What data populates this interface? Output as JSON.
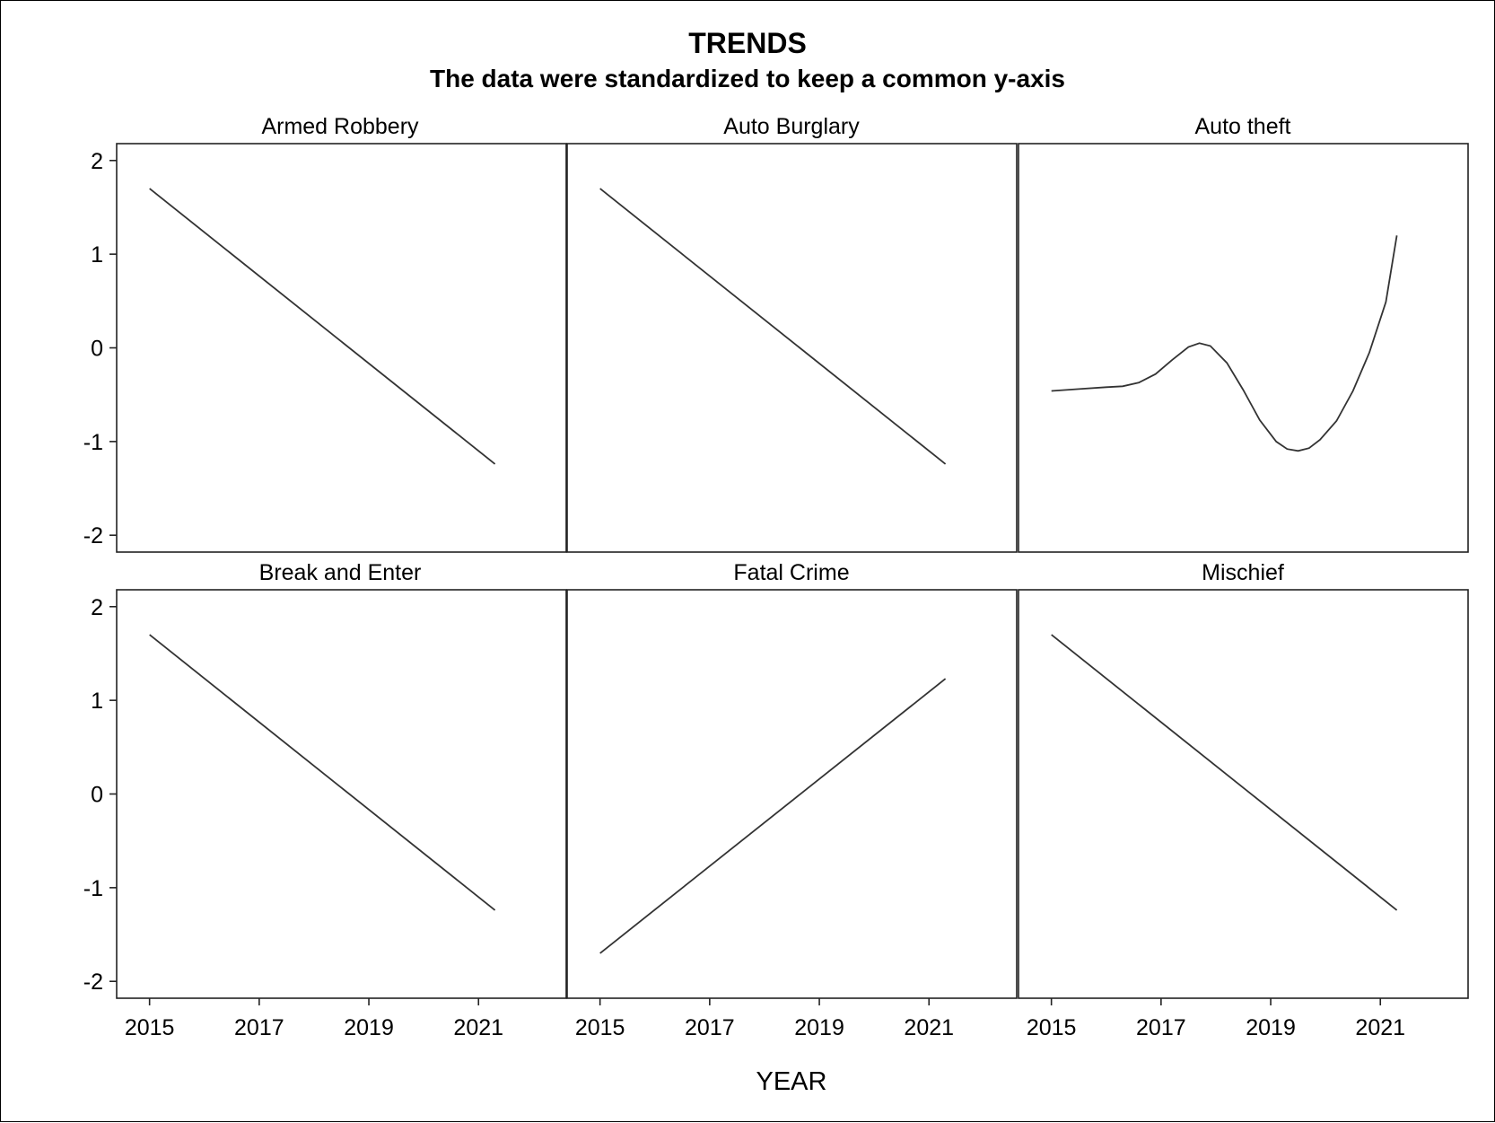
{
  "chart_data": {
    "type": "line",
    "title": "TRENDS",
    "subtitle": "The data were standardized to keep a common y-axis",
    "xlabel": "YEAR",
    "ylabel": "",
    "xlim": [
      2014.4,
      2022.6
    ],
    "ylim": [
      -2.18,
      2.18
    ],
    "x_ticks": [
      2015,
      2017,
      2019,
      2021
    ],
    "y_ticks": [
      -2,
      -1,
      0,
      1,
      2
    ],
    "grid": false,
    "layout": "panel grid, 3 columns x 2 rows, shared axes",
    "line_color": "#333333",
    "panels": [
      {
        "name": "Armed Robbery",
        "x": [
          2015,
          2021.3
        ],
        "y": [
          1.7,
          -1.24
        ]
      },
      {
        "name": "Auto Burglary",
        "x": [
          2015,
          2021.3
        ],
        "y": [
          1.7,
          -1.24
        ]
      },
      {
        "name": "Auto theft",
        "x": [
          2015,
          2015.5,
          2016,
          2016.3,
          2016.6,
          2016.9,
          2017.2,
          2017.5,
          2017.7,
          2017.9,
          2018.2,
          2018.5,
          2018.8,
          2019.1,
          2019.3,
          2019.5,
          2019.7,
          2019.9,
          2020.2,
          2020.5,
          2020.8,
          2021.1,
          2021.3
        ],
        "y": [
          -0.46,
          -0.44,
          -0.42,
          -0.41,
          -0.37,
          -0.28,
          -0.13,
          0.01,
          0.05,
          0.02,
          -0.16,
          -0.45,
          -0.77,
          -1.0,
          -1.08,
          -1.1,
          -1.07,
          -0.98,
          -0.78,
          -0.46,
          -0.05,
          0.49,
          1.2
        ]
      },
      {
        "name": "Break and Enter",
        "x": [
          2015,
          2021.3
        ],
        "y": [
          1.7,
          -1.24
        ]
      },
      {
        "name": "Fatal Crime",
        "x": [
          2015,
          2021.3
        ],
        "y": [
          -1.7,
          1.23
        ]
      },
      {
        "name": "Mischief",
        "x": [
          2015,
          2021.3
        ],
        "y": [
          1.7,
          -1.24
        ]
      }
    ]
  }
}
